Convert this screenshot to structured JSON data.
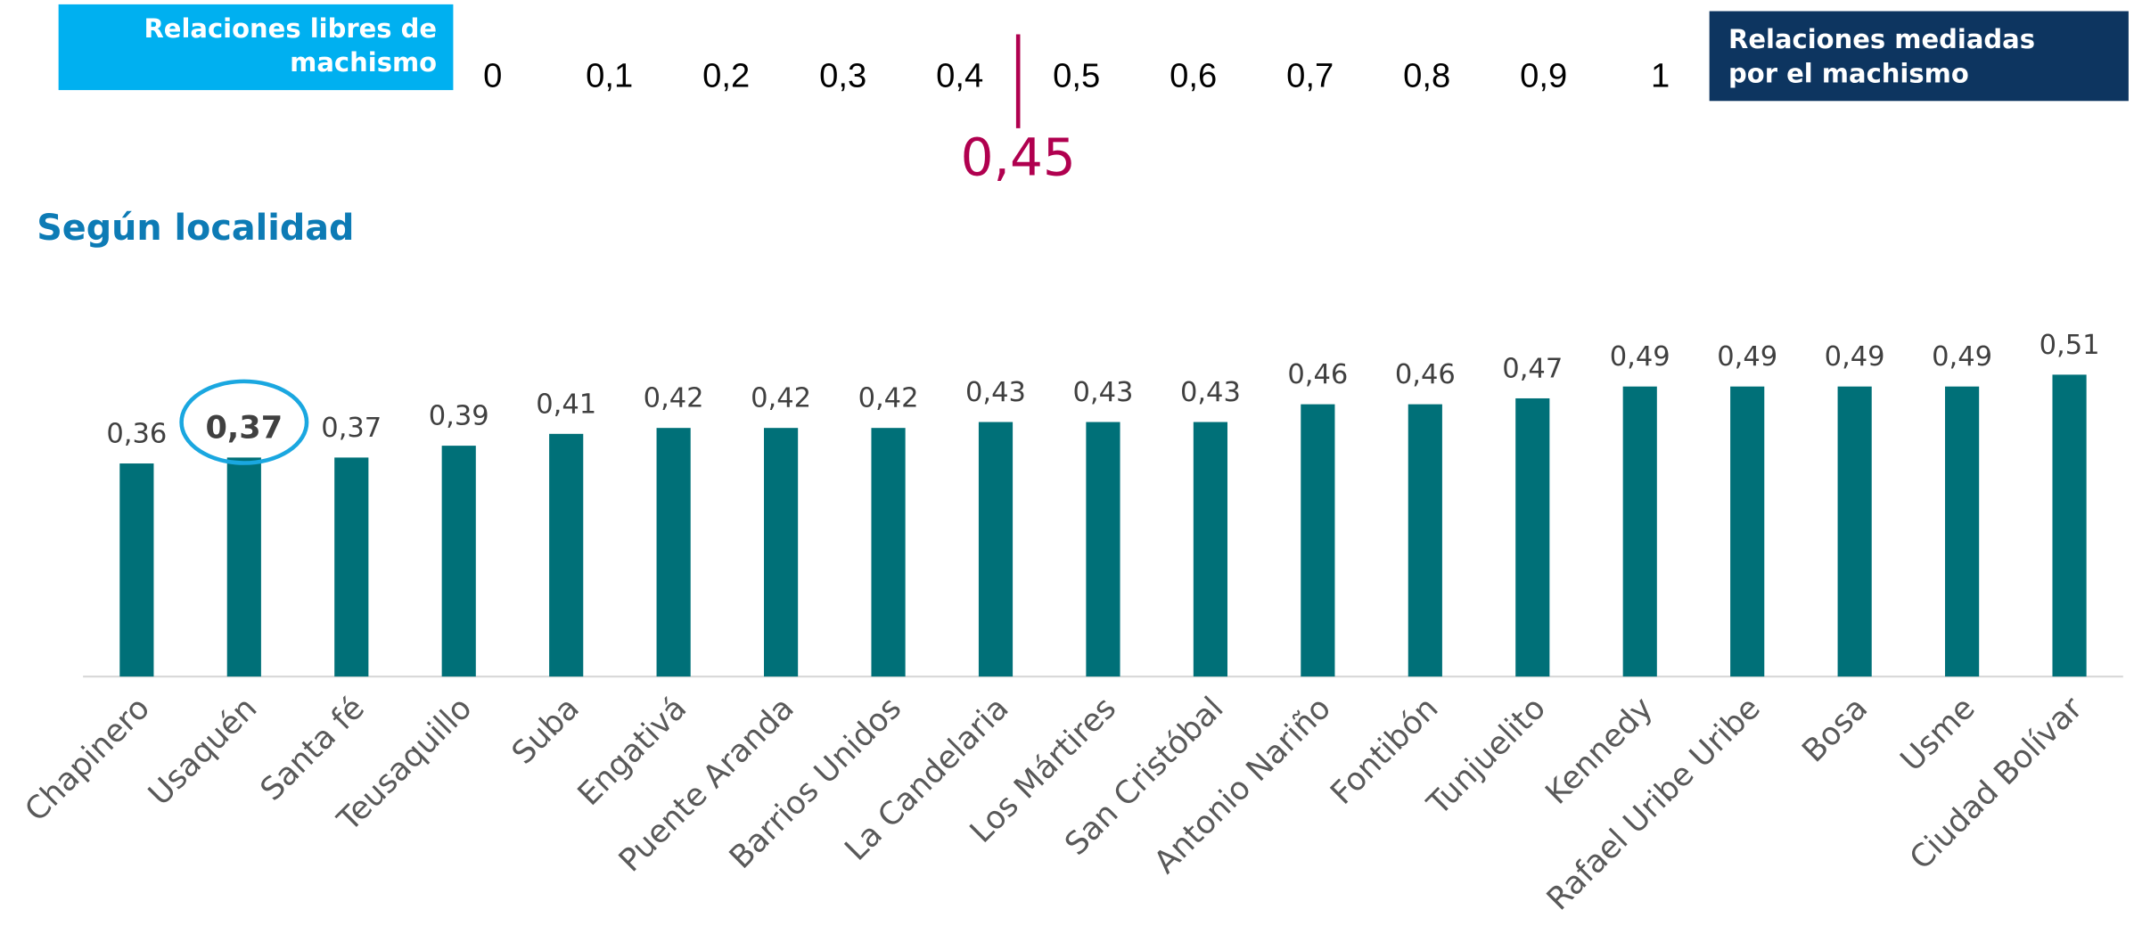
{
  "scale": {
    "left_label": [
      "Relaciones libres de",
      "machismo"
    ],
    "right_label": [
      "Relaciones mediadas",
      "por el  machismo"
    ],
    "xlim": [
      0,
      1
    ],
    "ticks": [
      0,
      {
        "value": 0.1,
        "label": "0,1"
      },
      {
        "value": 0.2,
        "label": "0,2"
      },
      {
        "value": 0.3,
        "label": "0,3"
      },
      {
        "value": 0.4,
        "label": "0,4"
      },
      {
        "value": 0.5,
        "label": "0,5"
      },
      {
        "value": 0.6,
        "label": "0,6"
      },
      {
        "value": 0.7,
        "label": "0,7"
      },
      {
        "value": 0.8,
        "label": "0,8"
      },
      {
        "value": 0.9,
        "label": "0,9"
      },
      1
    ],
    "marker": {
      "value": 0.45,
      "label": "0,45"
    },
    "marker_color": "#b0004f"
  },
  "chart_data": {
    "type": "bar",
    "title": "Según localidad",
    "categories": [
      "Chapinero",
      "Usaquén",
      "Santa fé",
      "Teusaquillo",
      "Suba",
      "Engativá",
      "Puente Aranda",
      "Barrios Unidos",
      "La Candelaria",
      "Los Mártires",
      "San Cristóbal",
      "Antonio Nariño",
      "Fontibón",
      "Tunjuelito",
      "Kennedy",
      "Rafael Uribe Uribe",
      "Bosa",
      "Usme",
      "Ciudad Bolívar"
    ],
    "values": [
      0.36,
      0.37,
      0.37,
      0.39,
      0.41,
      0.42,
      0.42,
      0.42,
      0.43,
      0.43,
      0.43,
      0.46,
      0.46,
      0.47,
      0.49,
      0.49,
      0.49,
      0.49,
      0.51
    ],
    "value_labels": [
      "0,36",
      "0,37",
      "0,37",
      "0,39",
      "0,41",
      "0,42",
      "0,42",
      "0,42",
      "0,43",
      "0,43",
      "0,43",
      "0,46",
      "0,46",
      "0,47",
      "0,49",
      "0,49",
      "0,49",
      "0,49",
      "0,51"
    ],
    "color": "#007078",
    "highlight": 1,
    "ylim": [
      0,
      0.6
    ]
  }
}
